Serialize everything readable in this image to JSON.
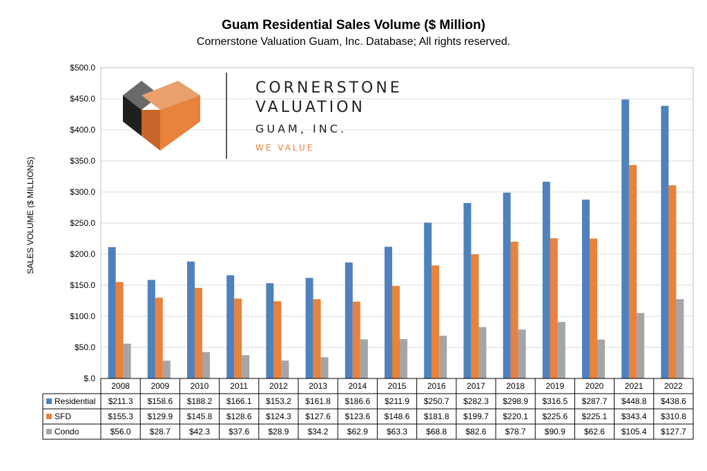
{
  "chart_data": {
    "type": "bar",
    "title": "Guam Residential Sales Volume ($ Million)",
    "subtitle": "Cornerstone Valuation Guam, Inc. Database; All rights reserved.",
    "ylabel": "SALES VOLUME ($ MILLIONS)",
    "xlabel": "",
    "ylim": [
      0,
      500
    ],
    "ytick_step": 50,
    "ytick_labels": [
      "$.0",
      "$50.0",
      "$100.0",
      "$150.0",
      "$200.0",
      "$250.0",
      "$300.0",
      "$350.0",
      "$400.0",
      "$450.0",
      "$500.0"
    ],
    "grid": true,
    "legend": "data-table",
    "categories": [
      "2008",
      "2009",
      "2010",
      "2011",
      "2012",
      "2013",
      "2014",
      "2015",
      "2016",
      "2017",
      "2018",
      "2019",
      "2020",
      "2021",
      "2022"
    ],
    "series": [
      {
        "name": "Residential",
        "color": "#4f81bd",
        "values": [
          211.3,
          158.6,
          188.2,
          166.1,
          153.2,
          161.8,
          186.6,
          211.9,
          250.7,
          282.3,
          298.9,
          316.5,
          287.7,
          448.8,
          438.6
        ],
        "labels": [
          "$211.3",
          "$158.6",
          "$188.2",
          "$166.1",
          "$153.2",
          "$161.8",
          "$186.6",
          "$211.9",
          "$250.7",
          "$282.3",
          "$298.9",
          "$316.5",
          "$287.7",
          "$448.8",
          "$438.6"
        ]
      },
      {
        "name": "SFD",
        "color": "#e8823c",
        "values": [
          155.3,
          129.9,
          145.8,
          128.6,
          124.3,
          127.6,
          123.6,
          148.6,
          181.8,
          199.7,
          220.1,
          225.6,
          225.1,
          343.4,
          310.8
        ],
        "labels": [
          "$155.3",
          "$129.9",
          "$145.8",
          "$128.6",
          "$124.3",
          "$127.6",
          "$123.6",
          "$148.6",
          "$181.8",
          "$199.7",
          "$220.1",
          "$225.6",
          "$225.1",
          "$343.4",
          "$310.8"
        ]
      },
      {
        "name": "Condo",
        "color": "#a5a5a5",
        "values": [
          56.0,
          28.7,
          42.3,
          37.6,
          28.9,
          34.2,
          62.9,
          63.3,
          68.8,
          82.6,
          78.7,
          90.9,
          62.6,
          105.4,
          127.7
        ],
        "labels": [
          "$56.0",
          "$28.7",
          "$42.3",
          "$37.6",
          "$28.9",
          "$34.2",
          "$62.9",
          "$63.3",
          "$68.8",
          "$82.6",
          "$78.7",
          "$90.9",
          "$62.6",
          "$105.4",
          "$127.7"
        ]
      }
    ]
  },
  "logo": {
    "line1": "CORNERSTONE",
    "line2": "VALUATION",
    "line3": "GUAM, INC.",
    "tagline": "WE VALUE",
    "accent_color": "#e8823c",
    "dark_color": "#3a3a3a"
  }
}
